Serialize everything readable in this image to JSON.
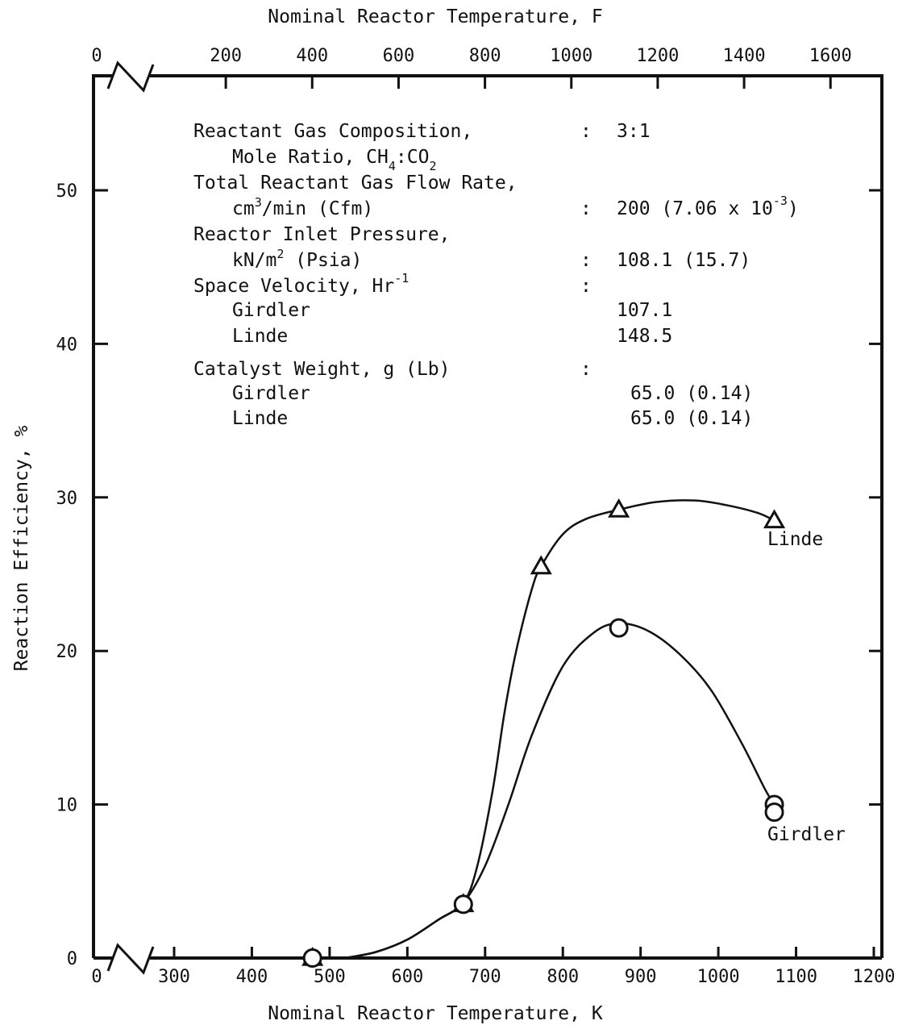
{
  "chart_data": {
    "type": "line",
    "title": "",
    "xlabel": "Nominal Reactor Temperature, K",
    "x2label": "Nominal Reactor Temperature, F",
    "ylabel": "Reaction Efficiency, %",
    "xlim": [
      0,
      1200
    ],
    "ylim": [
      0,
      57
    ],
    "x_axis_break": true,
    "grid": false,
    "x_ticks": [
      "0",
      "300",
      "400",
      "500",
      "600",
      "700",
      "800",
      "900",
      "1000",
      "1100",
      "1200"
    ],
    "x2_ticks": [
      "0",
      "200",
      "400",
      "600",
      "800",
      "1000",
      "1200",
      "1400",
      "1600"
    ],
    "y_ticks": [
      "0",
      "10",
      "20",
      "30",
      "40",
      "50"
    ],
    "series": [
      {
        "name": "Linde",
        "marker": "triangle",
        "color": "#111111",
        "x": [
          478,
          672,
          772,
          872,
          1072
        ],
        "y": [
          0,
          3.5,
          25.5,
          29.2,
          28.5
        ],
        "curve_x": [
          520,
          560,
          600,
          640,
          672,
          690,
          710,
          725,
          740,
          760,
          772,
          800,
          830,
          872,
          920,
          970,
          1010,
          1050,
          1072
        ],
        "curve_y": [
          0,
          0.4,
          1.2,
          2.5,
          3.6,
          6,
          11,
          16,
          20,
          24,
          25.5,
          27.6,
          28.6,
          29.2,
          29.7,
          29.8,
          29.5,
          29,
          28.5
        ]
      },
      {
        "name": "Girdler",
        "marker": "circle",
        "color": "#111111",
        "x": [
          478,
          672,
          872,
          1072,
          1072
        ],
        "y": [
          0,
          3.5,
          21.5,
          10,
          9.5
        ],
        "curve_x": [
          520,
          560,
          600,
          640,
          672,
          700,
          730,
          760,
          800,
          840,
          872,
          910,
          950,
          990,
          1030,
          1060,
          1072
        ],
        "curve_y": [
          0,
          0.4,
          1.2,
          2.5,
          3.6,
          6,
          10,
          14.5,
          19,
          21.2,
          21.8,
          21.3,
          19.8,
          17.5,
          14,
          11,
          10
        ]
      }
    ],
    "annotations": [
      {
        "label": "Reactant Gas Composition,",
        "value": ": 3:1"
      },
      {
        "label": "Mole Ratio, CH4:CO2",
        "value": ""
      },
      {
        "label": "Total Reactant Gas Flow Rate,",
        "value": ""
      },
      {
        "label": "cm3/min (Cfm)",
        "value": ": 200 (7.06 x 10-3)"
      },
      {
        "label": "Reactor Inlet Pressure,",
        "value": ""
      },
      {
        "label": "kN/m2 (Psia)",
        "value": ": 108.1 (15.7)"
      },
      {
        "label": "Space Velocity, Hr-1",
        "value": ":"
      },
      {
        "label": "Girdler",
        "value": "107.1"
      },
      {
        "label": "Linde",
        "value": "148.5"
      },
      {
        "label": "Catalyst Weight, g (Lb)",
        "value": ":"
      },
      {
        "label": "Girdler",
        "value": "65.0 (0.14)"
      },
      {
        "label": "Linde",
        "value": "65.0 (0.14)"
      }
    ]
  },
  "text": {
    "info_1a": "Reactant Gas Composition,",
    "info_1v": "3:1",
    "info_2a": "Mole Ratio, CH",
    "info_2sub": "4",
    "info_2b": ":CO",
    "info_2sub2": "2",
    "info_3a": "Total Reactant Gas Flow Rate,",
    "info_4a": "cm",
    "info_4sup": "3",
    "info_4b": "/min (Cfm)",
    "info_4v": "200 (7.06 x 10",
    "info_4vsup": "-3",
    "info_4vc": ")",
    "info_5a": "Reactor Inlet Pressure,",
    "info_6a": "kN/m",
    "info_6sup": "2",
    "info_6b": " (Psia)",
    "info_6v": "108.1 (15.7)",
    "info_7a": "Space Velocity, Hr",
    "info_7sup": "-1",
    "info_8a": "Girdler",
    "info_8v": "107.1",
    "info_9a": "Linde",
    "info_9v": "148.5",
    "info_10a": "Catalyst Weight, g (Lb)",
    "info_11a": "Girdler",
    "info_11v": "65.0 (0.14)",
    "info_12a": "Linde",
    "info_12v": "65.0 (0.14)",
    "colon": ":"
  }
}
